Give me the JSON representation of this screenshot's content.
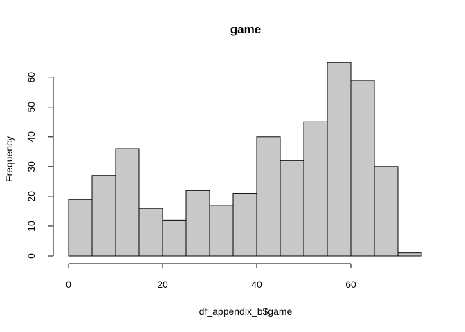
{
  "chart_data": {
    "type": "bar",
    "title": "game",
    "xlabel": "df_appendix_b$game",
    "ylabel": "Frequency",
    "bin_width": 5,
    "bins": [
      {
        "start": 0,
        "end": 5,
        "value": 19
      },
      {
        "start": 5,
        "end": 10,
        "value": 27
      },
      {
        "start": 10,
        "end": 15,
        "value": 36
      },
      {
        "start": 15,
        "end": 20,
        "value": 16
      },
      {
        "start": 20,
        "end": 25,
        "value": 12
      },
      {
        "start": 25,
        "end": 30,
        "value": 22
      },
      {
        "start": 30,
        "end": 35,
        "value": 17
      },
      {
        "start": 35,
        "end": 40,
        "value": 21
      },
      {
        "start": 40,
        "end": 45,
        "value": 40
      },
      {
        "start": 45,
        "end": 50,
        "value": 32
      },
      {
        "start": 50,
        "end": 55,
        "value": 45
      },
      {
        "start": 55,
        "end": 60,
        "value": 65
      },
      {
        "start": 60,
        "end": 65,
        "value": 59
      },
      {
        "start": 65,
        "end": 70,
        "value": 30
      },
      {
        "start": 70,
        "end": 75,
        "value": 1
      }
    ],
    "xlim": [
      0,
      75
    ],
    "ylim": [
      0,
      65
    ],
    "xticks": [
      0,
      20,
      40,
      60
    ],
    "yticks": [
      0,
      10,
      20,
      30,
      40,
      50,
      60
    ],
    "grid": false,
    "colors": {
      "bar_fill": "#c8c8c8",
      "bar_stroke": "#000000"
    }
  }
}
